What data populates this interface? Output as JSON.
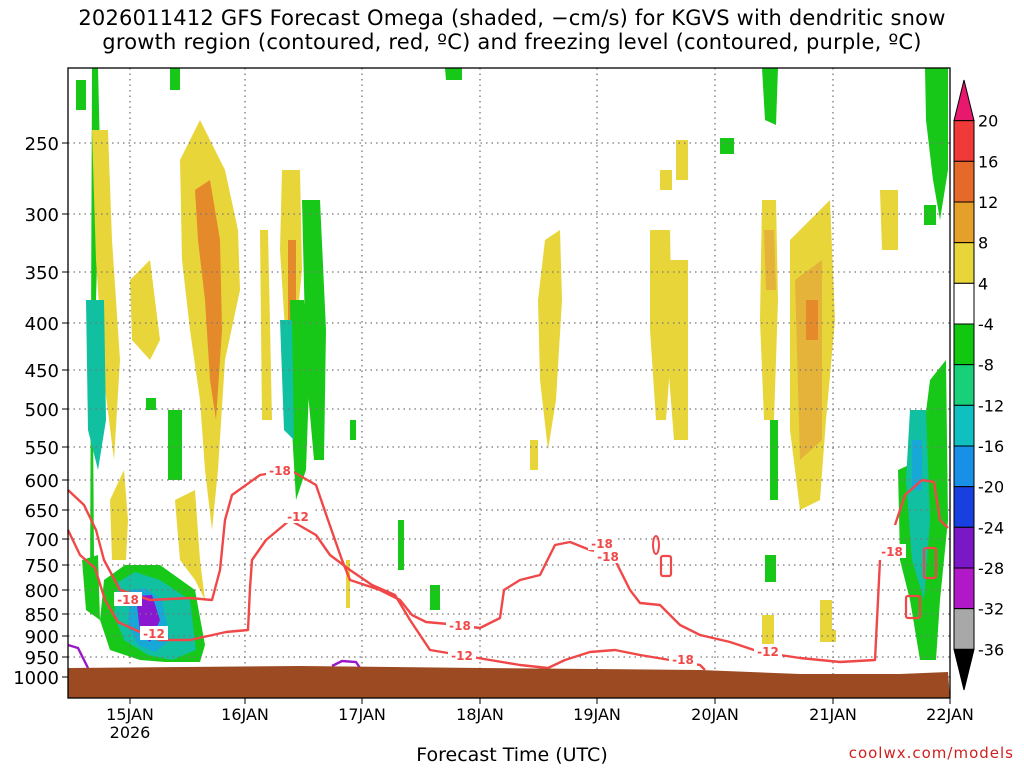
{
  "title_line1": "2026011412 GFS Forecast Omega (shaded, −cm/s) for KGVS with dendritic snow",
  "title_line2": "growth region (contoured, red, ºC) and freezing level (contoured, purple, ºC)",
  "xlabel": "Forecast Time (UTC)",
  "credit": "coolwx.com/models",
  "colors": {
    "yellow": "#e8d53a",
    "orange_light": "#e5b23a",
    "orange": "#e58a2a",
    "green": "#18c818",
    "teal": "#10c0a0",
    "cyan": "#18a8d8",
    "blue": "#1870e8",
    "violet": "#8a18d0",
    "red_contour": "#f04848",
    "purple_contour": "#9a18c8",
    "ground": "#9b4a22"
  },
  "chart_data": {
    "type": "heatmap",
    "y_ticks": [
      "250",
      "300",
      "350",
      "400",
      "450",
      "500",
      "550",
      "600",
      "650",
      "700",
      "750",
      "800",
      "850",
      "900",
      "950",
      "1000"
    ],
    "x_ticks": [
      "15JAN",
      "16JAN",
      "17JAN",
      "18JAN",
      "19JAN",
      "20JAN",
      "21JAN",
      "22JAN"
    ],
    "x_year": "2026",
    "colorbar": {
      "labels": [
        "20",
        "16",
        "12",
        "8",
        "4",
        "-4",
        "-8",
        "-12",
        "-16",
        "-20",
        "-24",
        "-28",
        "-32",
        "-36"
      ],
      "colors": [
        "#e8186e",
        "#f03a3a",
        "#e56a2a",
        "#e5a02a",
        "#e8d53a",
        "#ffffff",
        "#10c810",
        "#18d07a",
        "#10c0c0",
        "#1890e8",
        "#1840e0",
        "#7a18c8",
        "#b018c8",
        "#a8a8a8",
        "#000000"
      ]
    },
    "contour_labels": [
      "-18",
      "-12",
      "-18",
      "-12",
      "-18",
      "-12",
      "-18",
      "-18",
      "-12",
      "-18",
      "-18"
    ]
  }
}
